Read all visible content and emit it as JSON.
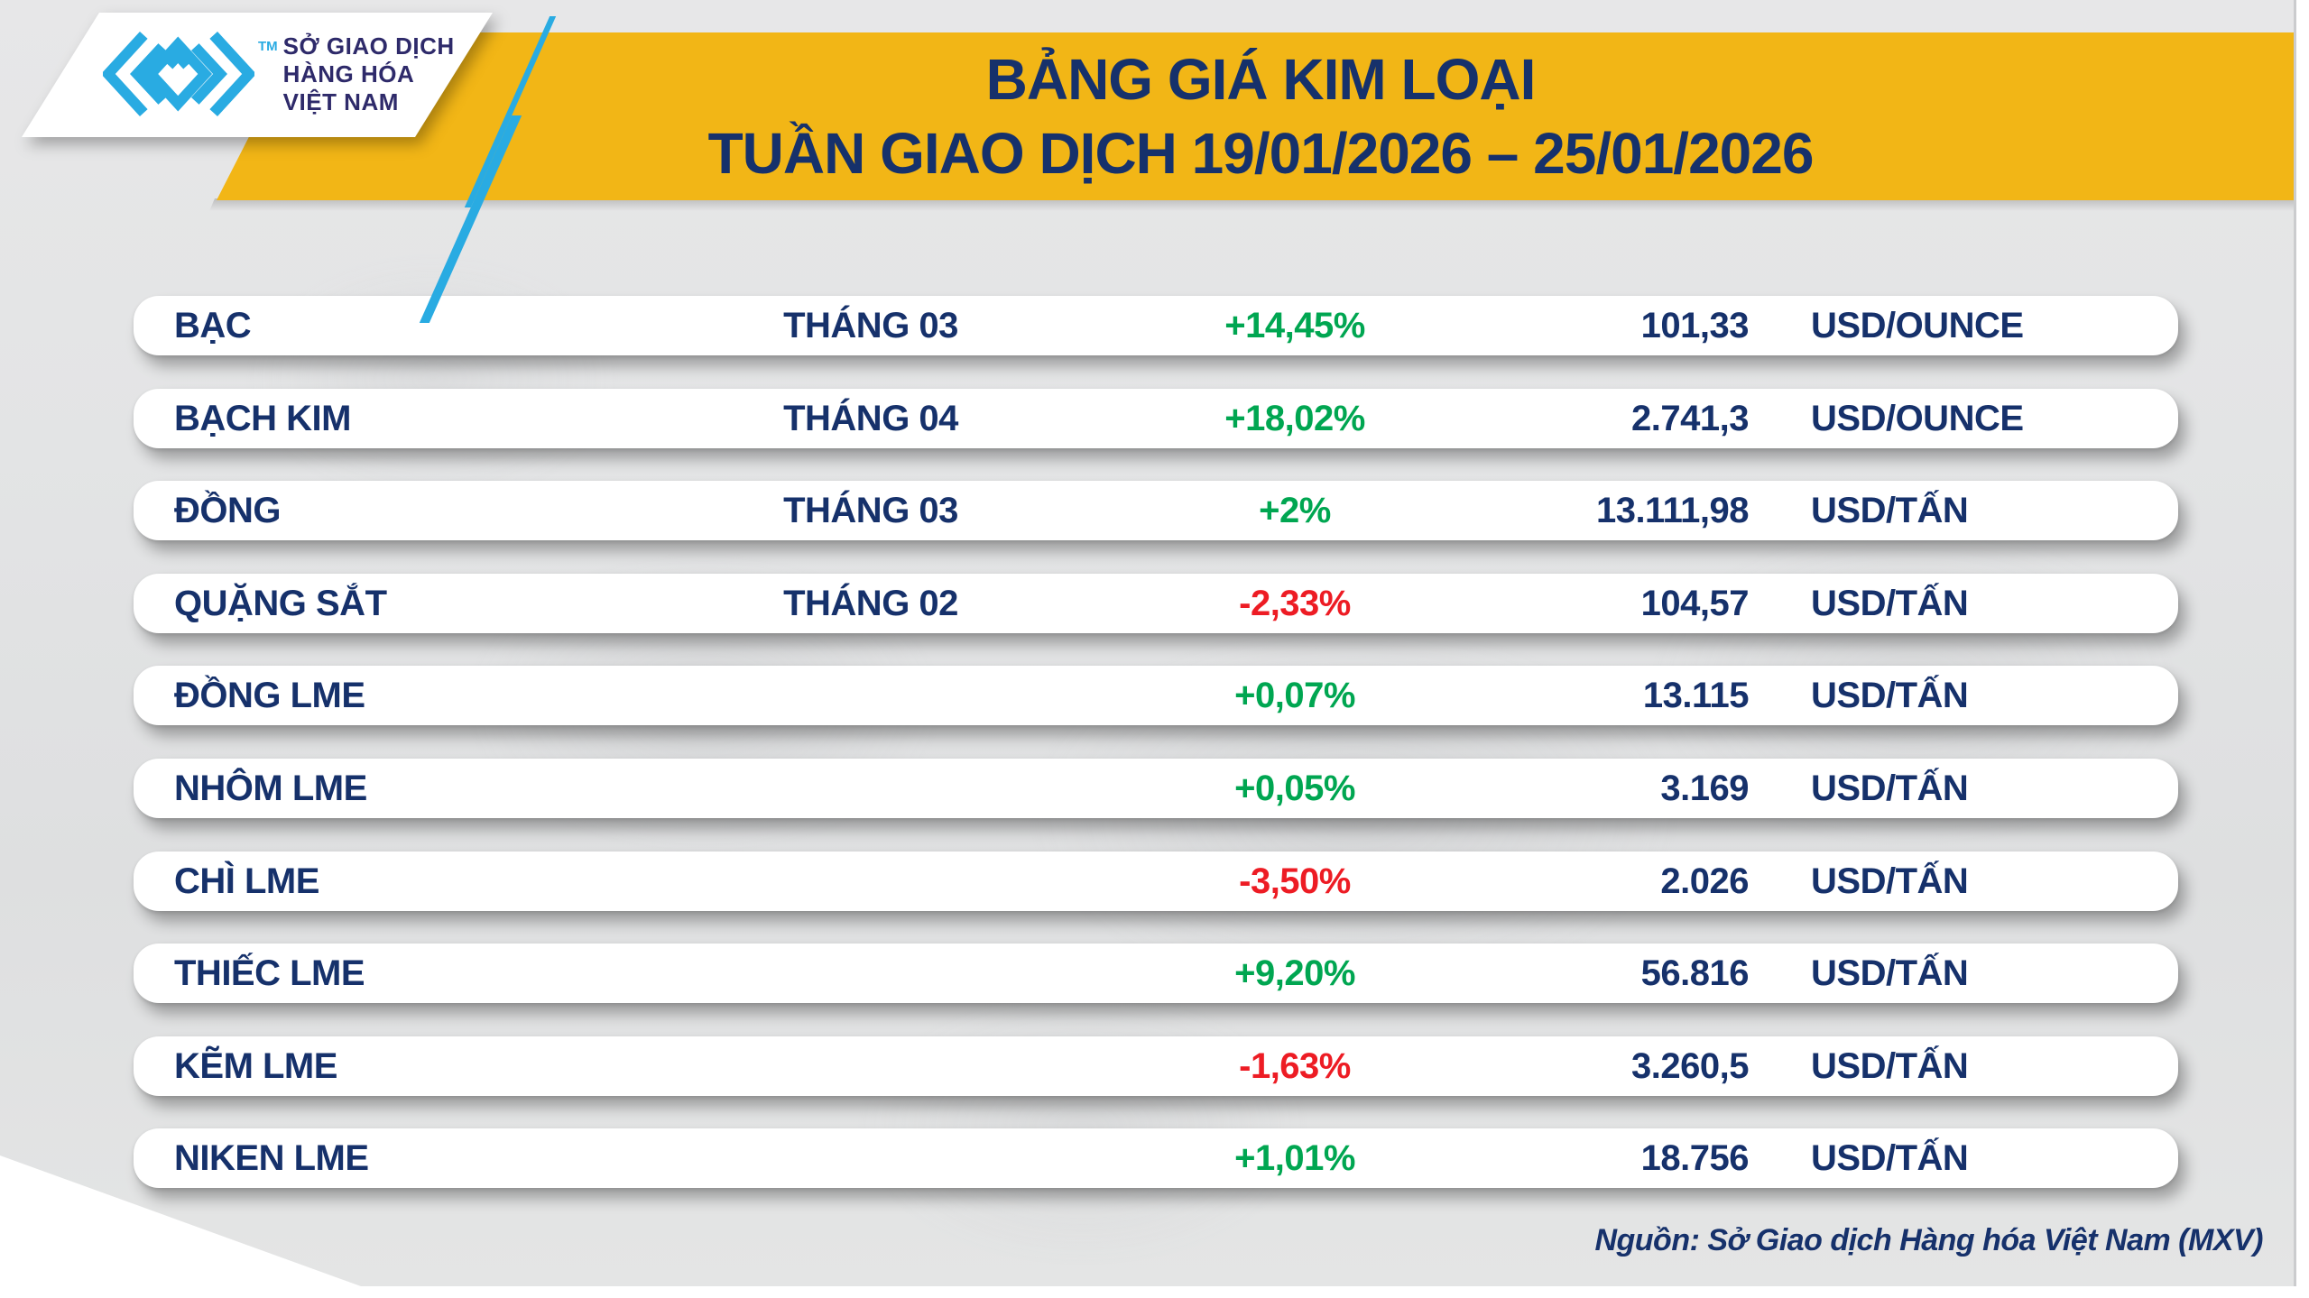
{
  "header": {
    "title_line1": "BẢNG GIÁ KIM LOẠI",
    "title_line2": "TUẦN GIAO DỊCH 19/01/2026 – 25/01/2026"
  },
  "logo": {
    "mark_icon": "mxv-chevron-logo-icon",
    "trademark": "TM",
    "org_line1": "SỞ GIAO DỊCH",
    "org_line2": "HÀNG HÓA",
    "org_line3": "VIỆT NAM"
  },
  "table": {
    "rows": [
      {
        "name": "BẠC",
        "month": "THÁNG 03",
        "change": "+14,45%",
        "direction": "up",
        "price": "101,33",
        "unit": "USD/OUNCE"
      },
      {
        "name": "BẠCH KIM",
        "month": "THÁNG 04",
        "change": "+18,02%",
        "direction": "up",
        "price": "2.741,3",
        "unit": "USD/OUNCE"
      },
      {
        "name": "ĐỒNG",
        "month": "THÁNG 03",
        "change": "+2%",
        "direction": "up",
        "price": "13.111,98",
        "unit": "USD/TẤN"
      },
      {
        "name": "QUẶNG SẮT",
        "month": "THÁNG 02",
        "change": "-2,33%",
        "direction": "down",
        "price": "104,57",
        "unit": "USD/TẤN"
      },
      {
        "name": "ĐỒNG LME",
        "month": "",
        "change": "+0,07%",
        "direction": "up",
        "price": "13.115",
        "unit": "USD/TẤN"
      },
      {
        "name": "NHÔM LME",
        "month": "",
        "change": "+0,05%",
        "direction": "up",
        "price": "3.169",
        "unit": "USD/TẤN"
      },
      {
        "name": "CHÌ LME",
        "month": "",
        "change": "-3,50%",
        "direction": "down",
        "price": "2.026",
        "unit": "USD/TẤN"
      },
      {
        "name": "THIẾC LME",
        "month": "",
        "change": "+9,20%",
        "direction": "up",
        "price": "56.816",
        "unit": "USD/TẤN"
      },
      {
        "name": "KẼM LME",
        "month": "",
        "change": "-1,63%",
        "direction": "down",
        "price": "3.260,5",
        "unit": "USD/TẤN"
      },
      {
        "name": "NIKEN LME",
        "month": "",
        "change": "+1,01%",
        "direction": "up",
        "price": "18.756",
        "unit": "USD/TẤN"
      }
    ]
  },
  "footer": {
    "source": "Nguồn: Sở Giao dịch Hàng hóa Việt Nam (MXV)"
  },
  "colors": {
    "up": "#00a651",
    "down": "#ed1c24",
    "navy": "#16316b",
    "banner_gold": "#f2b616",
    "logo_cyan": "#29abe2"
  },
  "chart_data": {
    "type": "table",
    "title": "BẢNG GIÁ KIM LOẠI",
    "subtitle": "TUẦN GIAO DỊCH 19/01/2026 – 25/01/2026",
    "columns": [
      "commodity",
      "contract_month",
      "weekly_change_pct",
      "price",
      "unit"
    ],
    "rows": [
      [
        "BẠC",
        "THÁNG 03",
        14.45,
        101.33,
        "USD/OUNCE"
      ],
      [
        "BẠCH KIM",
        "THÁNG 04",
        18.02,
        2741.3,
        "USD/OUNCE"
      ],
      [
        "ĐỒNG",
        "THÁNG 03",
        2.0,
        13111.98,
        "USD/TẤN"
      ],
      [
        "QUẶNG SẮT",
        "THÁNG 02",
        -2.33,
        104.57,
        "USD/TẤN"
      ],
      [
        "ĐỒNG LME",
        "",
        0.07,
        13115,
        "USD/TẤN"
      ],
      [
        "NHÔM LME",
        "",
        0.05,
        3169,
        "USD/TẤN"
      ],
      [
        "CHÌ LME",
        "",
        -3.5,
        2026,
        "USD/TẤN"
      ],
      [
        "THIẾC LME",
        "",
        9.2,
        56816,
        "USD/TẤN"
      ],
      [
        "KẼM LME",
        "",
        -1.63,
        3260.5,
        "USD/TẤN"
      ],
      [
        "NIKEN LME",
        "",
        1.01,
        18756,
        "USD/TẤN"
      ]
    ],
    "source_note": "Nguồn: Sở Giao dịch Hàng hóa Việt Nam (MXV)"
  }
}
